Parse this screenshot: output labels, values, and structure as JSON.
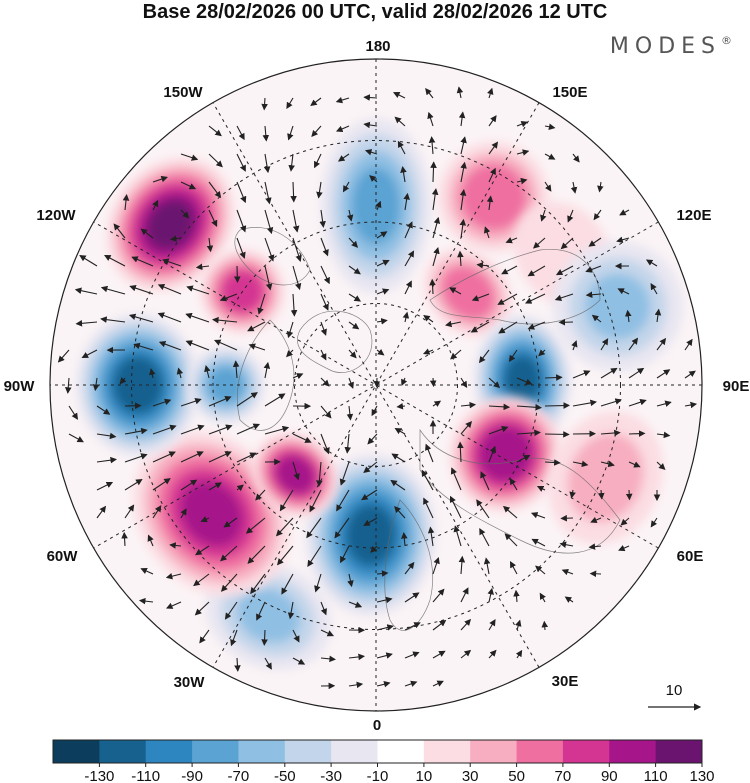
{
  "header": {
    "title": "Base 28/02/2026 00 UTC, valid 28/02/2026 12 UTC",
    "brand": "MODES",
    "brand_mark": "®"
  },
  "longitude_labels": {
    "n180": "180",
    "n150e": "150E",
    "n120e": "120E",
    "n90e": "90E",
    "n60e": "60E",
    "n30e": "30E",
    "n0": "0",
    "n30w": "30W",
    "n60w": "60W",
    "n90w": "90W",
    "n120w": "120W",
    "n150w": "150W"
  },
  "vector_key": {
    "label": "10"
  },
  "colorbar": {
    "labels": [
      "-130",
      "-110",
      "-90",
      "-70",
      "-50",
      "-30",
      "-10",
      "10",
      "30",
      "50",
      "70",
      "90",
      "110",
      "130"
    ],
    "colors": [
      "#0c3d5c",
      "#17618f",
      "#2d86c0",
      "#5aa3d3",
      "#8fbfe3",
      "#c3d5ea",
      "#e8e6f1",
      "#ffffff",
      "#fbdde3",
      "#f7aec0",
      "#ef6fa0",
      "#d43592",
      "#a6168a",
      "#6a1470"
    ]
  },
  "map": {
    "anomalies": [
      {
        "name": "trough-180",
        "ang": 0,
        "r": 0.55,
        "value": -80,
        "rx": 0.17,
        "ry": 0.27
      },
      {
        "name": "ridge-150e",
        "ang": 32,
        "r": 0.68,
        "value": 75,
        "rx": 0.17,
        "ry": 0.17
      },
      {
        "name": "ridge-120e",
        "ang": 55,
        "r": 0.7,
        "value": 30,
        "rx": 0.17,
        "ry": 0.14
      },
      {
        "name": "ridge-135e",
        "ang": 45,
        "r": 0.4,
        "value": 75,
        "rx": 0.15,
        "ry": 0.12
      },
      {
        "name": "trough-90e",
        "ang": 88,
        "r": 0.45,
        "value": -120,
        "rx": 0.2,
        "ry": 0.15
      },
      {
        "name": "trough-105e",
        "ang": 72,
        "r": 0.78,
        "value": -60,
        "rx": 0.2,
        "ry": 0.2
      },
      {
        "name": "ridge-60e",
        "ang": 118,
        "r": 0.45,
        "value": 115,
        "rx": 0.18,
        "ry": 0.17
      },
      {
        "name": "ridge-70e",
        "ang": 112,
        "r": 0.76,
        "value": 45,
        "rx": 0.21,
        "ry": 0.17
      },
      {
        "name": "trough-5w",
        "ang": 182,
        "r": 0.46,
        "value": -120,
        "rx": 0.2,
        "ry": 0.25
      },
      {
        "name": "trough-25w",
        "ang": 205,
        "r": 0.78,
        "value": -60,
        "rx": 0.2,
        "ry": 0.16
      },
      {
        "name": "ridge-45w",
        "ang": 232,
        "r": 0.64,
        "value": 100,
        "rx": 0.27,
        "ry": 0.22
      },
      {
        "name": "ridge-35w",
        "ang": 222,
        "r": 0.37,
        "value": 110,
        "rx": 0.14,
        "ry": 0.12
      },
      {
        "name": "trough-90w",
        "ang": 270,
        "r": 0.73,
        "value": -125,
        "rx": 0.22,
        "ry": 0.19
      },
      {
        "name": "trough-90w-inner",
        "ang": 270,
        "r": 0.46,
        "value": -85,
        "rx": 0.12,
        "ry": 0.12
      },
      {
        "name": "ridge-120w",
        "ang": 308,
        "r": 0.8,
        "value": 120,
        "rx": 0.22,
        "ry": 0.18
      },
      {
        "name": "ridge-115w",
        "ang": 305,
        "r": 0.5,
        "value": 90,
        "rx": 0.13,
        "ry": 0.13
      }
    ]
  }
}
